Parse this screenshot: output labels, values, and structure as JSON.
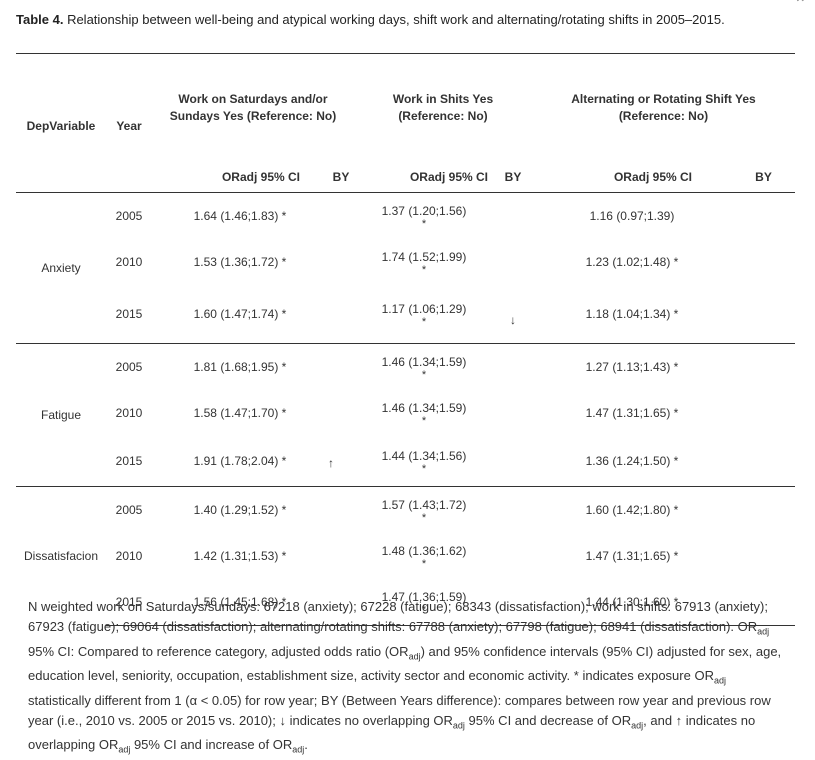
{
  "caption": {
    "label": "Table 4.",
    "text": " Relationship between well-being and atypical working days, shift work and alternating/rotating shifts in 2005–2015."
  },
  "table": {
    "headers": {
      "depvar": "DepVariable",
      "year": "Year",
      "weekend": "Work on Saturdays and/or Sundays Yes (Reference: No)",
      "shifts": "Work in Shits Yes (Reference: No)",
      "rotating": "Alternating or Rotating Shift Yes (Reference: No)",
      "orci": "ORadj 95% CI",
      "by": "BY"
    },
    "groups": [
      {
        "name": "Anxiety",
        "rows": [
          {
            "year": "2005",
            "weekend": "1.64 (1.46;1.83) *",
            "weekend_by": "",
            "shifts": "1.37 (1.20;1.56)",
            "shifts_star": "*",
            "shifts_by": "",
            "rotating": "1.16 (0.97;1.39)",
            "rotating_by": ""
          },
          {
            "year": "2010",
            "weekend": "1.53 (1.36;1.72) *",
            "weekend_by": "",
            "shifts": "1.74 (1.52;1.99)",
            "shifts_star": "*",
            "shifts_by": "",
            "rotating": "1.23 (1.02;1.48) *",
            "rotating_by": ""
          },
          {
            "year": "2015",
            "weekend": "1.60 (1.47;1.74) *",
            "weekend_by": "",
            "shifts": "1.17 (1.06;1.29)",
            "shifts_star": "*",
            "shifts_by": "↓",
            "rotating": "1.18 (1.04;1.34) *",
            "rotating_by": ""
          }
        ]
      },
      {
        "name": "Fatigue",
        "rows": [
          {
            "year": "2005",
            "weekend": "1.81 (1.68;1.95) *",
            "weekend_by": "",
            "shifts": "1.46 (1.34;1.59)",
            "shifts_star": "*",
            "shifts_by": "",
            "rotating": "1.27 (1.13;1.43) *",
            "rotating_by": ""
          },
          {
            "year": "2010",
            "weekend": "1.58 (1.47;1.70) *",
            "weekend_by": "",
            "shifts": "1.46 (1.34;1.59)",
            "shifts_star": "*",
            "shifts_by": "",
            "rotating": "1.47 (1.31;1.65) *",
            "rotating_by": ""
          },
          {
            "year": "2015",
            "weekend": "1.91 (1.78;2.04) *",
            "weekend_by": "↑",
            "shifts": "1.44 (1.34;1.56)",
            "shifts_star": "*",
            "shifts_by": "",
            "rotating": "1.36 (1.24;1.50) *",
            "rotating_by": ""
          }
        ]
      },
      {
        "name": "Dissatisfacion",
        "rows": [
          {
            "year": "2005",
            "weekend": "1.40 (1.29;1.52) *",
            "weekend_by": "",
            "shifts": "1.57 (1.43;1.72)",
            "shifts_star": "*",
            "shifts_by": "",
            "rotating": "1.60 (1.42;1.80) *",
            "rotating_by": ""
          },
          {
            "year": "2010",
            "weekend": "1.42 (1.31;1.53) *",
            "weekend_by": "",
            "shifts": "1.48 (1.36;1.62)",
            "shifts_star": "*",
            "shifts_by": "",
            "rotating": "1.47 (1.31;1.65) *",
            "rotating_by": ""
          },
          {
            "year": "2015",
            "weekend": "1.56 (1.45;1.68) *",
            "weekend_by": "",
            "shifts": "1.47 (1.36;1.59)",
            "shifts_star": "*",
            "shifts_by": "",
            "rotating": "1.44 (1.30;1.60) *",
            "rotating_by": ""
          }
        ]
      }
    ]
  },
  "notes": {
    "p1": "N weighted work on Saturdays/sundays: 67218 (anxiety); 67228 (fatigue); 68343 (dissatisfaction); work in shifts: 67913 (anxiety); 67923 (fatigue); 69064 (dissatisfaction); alternating/rotating shifts: 67788 (anxiety); 67798 (fatigue); 68941 (dissatisfaction).",
    "or": "OR",
    "adj": "adj",
    "t1": " 95% CI: Compared to reference category, adjusted odds ratio (OR",
    "t2": ") and 95% confidence intervals (95% CI) adjusted for sex, age, education level, seniority, occupation, establishment size, activity sector and economic activity. * indicates exposure OR",
    "t3": " statistically different from 1 (α < 0.05) for row year; BY (Between Years difference): compares between row year and previous row year (i.e., 2010 vs. 2005 or 2015 vs. 2010); ↓ indicates no overlapping OR",
    "t4": " 95% CI and decrease of OR",
    "t5": ", and ↑ indicates no overlapping OR",
    "t6": " 95% CI and increase of OR",
    "t7": "."
  }
}
